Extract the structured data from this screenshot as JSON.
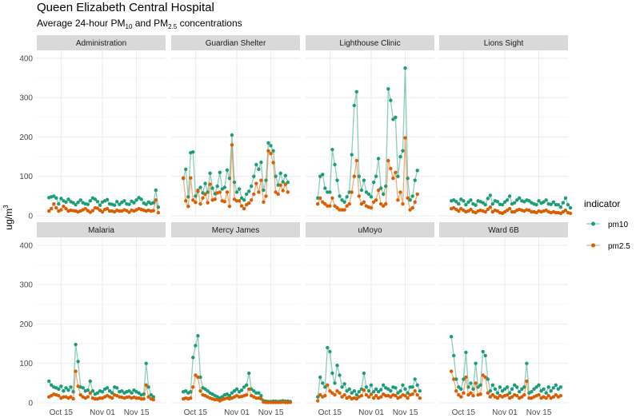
{
  "chart_data": {
    "type": "line",
    "title": "Queen Elizabeth Central Hospital",
    "subtitle": {
      "prefix": "Average 24-hour PM",
      "pm10_sub": "10",
      "middle": " and  PM",
      "pm25_sub": "2.5",
      "suffix": " concentrations"
    },
    "ylabel": {
      "base": "ug/m",
      "sup": "3"
    },
    "ylim": [
      0,
      420
    ],
    "yticks": [
      "0",
      "100",
      "200",
      "300",
      "400"
    ],
    "yticks_values": [
      0,
      100,
      200,
      300,
      400
    ],
    "xlim": [
      0,
      53
    ],
    "xticks": [
      {
        "label": "Oct 15",
        "day": 10
      },
      {
        "label": "Nov 01",
        "day": 27
      },
      {
        "label": "Nov 15",
        "day": 41
      }
    ],
    "legend": {
      "title": "indicator",
      "items": [
        {
          "name": "pm10",
          "color": "#1b9e77"
        },
        {
          "name": "pm2.5",
          "color": "#d95f02"
        }
      ]
    },
    "colors": {
      "pm10": "#1b9e77",
      "pm2.5": "#d95f02",
      "strip": "#d9d9d9",
      "grid": "#ebebeb"
    },
    "start_day": 5,
    "panels": [
      {
        "name": "Administration",
        "pm10": [
          46,
          48,
          50,
          45,
          30,
          44,
          38,
          35,
          42,
          36,
          33,
          28,
          34,
          40,
          33,
          30,
          29,
          38,
          45,
          42,
          36,
          27,
          35,
          38,
          41,
          30,
          29,
          27,
          36,
          29,
          34,
          38,
          30,
          29,
          37,
          33,
          40,
          46,
          42,
          32,
          29,
          35,
          31,
          33,
          65,
          22
        ],
        "pm2.5": [
          12,
          18,
          30,
          20,
          12,
          15,
          24,
          18,
          12,
          14,
          13,
          12,
          10,
          12,
          15,
          18,
          13,
          9,
          13,
          20,
          19,
          14,
          10,
          16,
          18,
          12,
          12,
          10,
          14,
          12,
          12,
          15,
          13,
          9,
          14,
          12,
          15,
          18,
          16,
          14,
          12,
          14,
          12,
          13,
          40,
          8
        ]
      },
      {
        "name": "Guardian Shelter",
        "pm10": [
          95,
          118,
          48,
          160,
          162,
          50,
          62,
          72,
          58,
          82,
          60,
          108,
          70,
          56,
          75,
          110,
          68,
          72,
          116,
          95,
          205,
          85,
          60,
          68,
          45,
          40,
          55,
          62,
          75,
          100,
          130,
          118,
          136,
          65,
          90,
          185,
          178,
          165,
          100,
          78,
          108,
          86,
          102,
          85
        ],
        "pm2.5": [
          96,
          38,
          24,
          96,
          40,
          34,
          65,
          30,
          45,
          55,
          33,
          80,
          40,
          42,
          58,
          60,
          38,
          36,
          60,
          24,
          180,
          42,
          38,
          38,
          25,
          18,
          28,
          32,
          40,
          55,
          82,
          60,
          90,
          35,
          50,
          165,
          158,
          135,
          60,
          55,
          78,
          64,
          80,
          60
        ]
      },
      {
        "name": "Lighthouse Clinic",
        "pm10": [
          45,
          100,
          105,
          70,
          60,
          60,
          168,
          130,
          90,
          50,
          40,
          35,
          48,
          60,
          155,
          280,
          315,
          100,
          65,
          90,
          60,
          55,
          48,
          85,
          100,
          145,
          70,
          55,
          75,
          322,
          293,
          245,
          250,
          100,
          150,
          165,
          375,
          95,
          40,
          50,
          90,
          115
        ],
        "pm2.5": [
          30,
          45,
          35,
          30,
          25,
          25,
          45,
          25,
          20,
          15,
          15,
          15,
          25,
          30,
          60,
          100,
          140,
          50,
          30,
          35,
          25,
          22,
          20,
          35,
          40,
          65,
          30,
          25,
          30,
          140,
          120,
          95,
          110,
          40,
          60,
          30,
          198,
          45,
          15,
          20,
          35,
          55
        ]
      },
      {
        "name": "Lions Sight",
        "pm10": [
          38,
          40,
          36,
          30,
          42,
          38,
          28,
          35,
          40,
          30,
          27,
          38,
          36,
          33,
          28,
          44,
          52,
          30,
          38,
          36,
          29,
          28,
          35,
          40,
          50,
          30,
          33,
          40,
          45,
          38,
          36,
          40,
          38,
          33,
          30,
          28,
          38,
          32,
          35,
          40,
          30,
          29,
          35,
          28,
          28,
          22,
          33,
          45,
          28,
          20
        ],
        "pm2.5": [
          18,
          20,
          16,
          12,
          18,
          14,
          10,
          12,
          16,
          10,
          8,
          12,
          14,
          12,
          10,
          16,
          22,
          10,
          14,
          12,
          8,
          6,
          10,
          14,
          18,
          10,
          10,
          14,
          16,
          14,
          12,
          15,
          14,
          10,
          10,
          8,
          12,
          10,
          12,
          14,
          10,
          8,
          10,
          8,
          8,
          6,
          10,
          14,
          8,
          6
        ]
      },
      {
        "name": "Malaria",
        "pm10": [
          55,
          45,
          40,
          38,
          35,
          42,
          30,
          38,
          32,
          40,
          28,
          148,
          105,
          40,
          38,
          30,
          32,
          55,
          30,
          22,
          25,
          30,
          28,
          35,
          38,
          30,
          25,
          40,
          38,
          28,
          30,
          25,
          28,
          30,
          25,
          32,
          28,
          25,
          20,
          22,
          100,
          40,
          20,
          15
        ],
        "pm2.5": [
          15,
          18,
          22,
          20,
          18,
          12,
          15,
          15,
          12,
          15,
          10,
          80,
          42,
          20,
          15,
          12,
          15,
          25,
          12,
          10,
          10,
          12,
          12,
          15,
          18,
          15,
          12,
          20,
          18,
          15,
          14,
          12,
          14,
          15,
          12,
          14,
          12,
          12,
          10,
          10,
          45,
          15,
          10,
          8
        ]
      },
      {
        "name": "Mercy James",
        "pm10": [
          28,
          30,
          25,
          28,
          115,
          145,
          170,
          65,
          38,
          35,
          30,
          25,
          22,
          18,
          15,
          12,
          15,
          20,
          22,
          18,
          25,
          30,
          35,
          28,
          32,
          40,
          45,
          75,
          35,
          30,
          25,
          25,
          18,
          5,
          4,
          3,
          3,
          4,
          4,
          3,
          4,
          5,
          4,
          4,
          3
        ],
        "pm2.5": [
          10,
          12,
          10,
          12,
          40,
          70,
          65,
          30,
          20,
          18,
          15,
          12,
          10,
          8,
          8,
          5,
          8,
          10,
          12,
          10,
          12,
          15,
          18,
          15,
          16,
          18,
          20,
          35,
          18,
          15,
          12,
          12,
          10,
          2,
          1,
          1,
          1,
          1,
          1,
          1,
          1,
          2,
          1,
          1,
          1
        ]
      },
      {
        "name": "uMoyo",
        "pm10": [
          15,
          65,
          50,
          40,
          140,
          130,
          75,
          50,
          95,
          70,
          40,
          48,
          30,
          35,
          25,
          30,
          20,
          28,
          35,
          75,
          40,
          30,
          45,
          28,
          35,
          28,
          33,
          45,
          38,
          35,
          30,
          40,
          38,
          25,
          30,
          45,
          35,
          25,
          40,
          40,
          60,
          45,
          30
        ],
        "pm2.5": [
          5,
          20,
          15,
          18,
          45,
          30,
          25,
          20,
          30,
          25,
          15,
          20,
          12,
          15,
          10,
          12,
          10,
          15,
          18,
          32,
          20,
          15,
          22,
          12,
          18,
          12,
          15,
          22,
          18,
          18,
          15,
          20,
          18,
          12,
          15,
          20,
          18,
          12,
          20,
          22,
          30,
          20,
          12
        ]
      },
      {
        "name": "Ward 6B",
        "pm10": [
          168,
          120,
          60,
          40,
          35,
          60,
          128,
          40,
          50,
          35,
          100,
          40,
          45,
          130,
          120,
          60,
          30,
          45,
          35,
          25,
          40,
          30,
          35,
          40,
          25,
          35,
          45,
          40,
          28,
          35,
          40,
          100,
          25,
          28,
          35,
          40,
          45,
          30,
          35,
          25,
          40,
          30,
          38,
          45,
          35,
          40
        ],
        "pm2.5": [
          80,
          60,
          30,
          20,
          15,
          25,
          65,
          20,
          25,
          18,
          50,
          20,
          22,
          70,
          65,
          25,
          15,
          20,
          15,
          12,
          18,
          15,
          18,
          20,
          12,
          15,
          20,
          18,
          12,
          15,
          20,
          55,
          12,
          12,
          15,
          18,
          20,
          12,
          15,
          12,
          18,
          12,
          15,
          20,
          15,
          18
        ]
      }
    ]
  }
}
